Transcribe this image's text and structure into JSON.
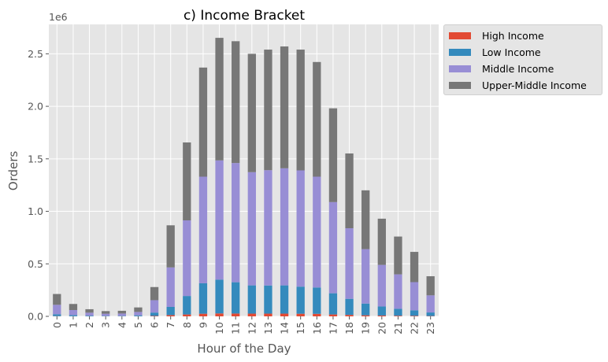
{
  "chart_data": {
    "type": "bar",
    "stacked": true,
    "title": "c) Income Bracket",
    "xlabel": "Hour of the Day",
    "ylabel": "Orders",
    "y_offset_label": "1e6",
    "ylim": [
      0,
      2.78
    ],
    "y_ticks": [
      0.0,
      0.5,
      1.0,
      1.5,
      2.0,
      2.5
    ],
    "y_tick_labels": [
      "0.0",
      "0.5",
      "1.0",
      "1.5",
      "2.0",
      "2.5"
    ],
    "grid": true,
    "legend_position": "outside-top-right",
    "categories": [
      "0",
      "1",
      "2",
      "3",
      "4",
      "5",
      "6",
      "7",
      "8",
      "9",
      "10",
      "11",
      "12",
      "13",
      "14",
      "15",
      "16",
      "17",
      "18",
      "19",
      "20",
      "21",
      "22",
      "23"
    ],
    "series": [
      {
        "name": "High Income",
        "color": "#e24a33",
        "values": [
          0.002,
          0.001,
          0.001,
          0.001,
          0.001,
          0.001,
          0.004,
          0.012,
          0.018,
          0.025,
          0.028,
          0.027,
          0.026,
          0.026,
          0.026,
          0.025,
          0.024,
          0.018,
          0.014,
          0.01,
          0.008,
          0.006,
          0.005,
          0.003
        ]
      },
      {
        "name": "Low Income",
        "color": "#348abd",
        "values": [
          0.018,
          0.011,
          0.006,
          0.004,
          0.004,
          0.009,
          0.032,
          0.078,
          0.176,
          0.29,
          0.322,
          0.298,
          0.269,
          0.268,
          0.269,
          0.258,
          0.251,
          0.202,
          0.153,
          0.112,
          0.086,
          0.066,
          0.053,
          0.034
        ]
      },
      {
        "name": "Middle Income",
        "color": "#988ed5",
        "values": [
          0.09,
          0.048,
          0.028,
          0.02,
          0.022,
          0.032,
          0.118,
          0.376,
          0.72,
          1.015,
          1.135,
          1.135,
          1.078,
          1.098,
          1.115,
          1.107,
          1.055,
          0.868,
          0.672,
          0.518,
          0.396,
          0.328,
          0.268,
          0.163
        ]
      },
      {
        "name": "Upper-Middle Income",
        "color": "#777777",
        "values": [
          0.103,
          0.058,
          0.033,
          0.025,
          0.026,
          0.043,
          0.125,
          0.401,
          0.742,
          1.039,
          1.167,
          1.16,
          1.127,
          1.148,
          1.16,
          1.15,
          1.092,
          0.893,
          0.712,
          0.56,
          0.44,
          0.36,
          0.288,
          0.182
        ]
      }
    ]
  }
}
